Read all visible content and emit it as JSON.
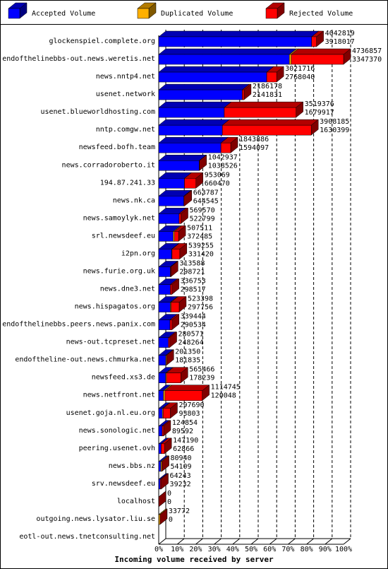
{
  "chart_data": {
    "type": "bar3d-stacked-horizontal",
    "xlabel": "Incoming volume received by server",
    "categories": [
      "glockenspiel.complete.org",
      "endofthelinebbs-out.news.weretis.net",
      "news.nntp4.net",
      "usenet.network",
      "usenet.blueworldhosting.com",
      "nntp.comgw.net",
      "newsfeed.bofh.team",
      "news.corradoroberto.it",
      "194.87.241.33",
      "news.nk.ca",
      "news.samoylyk.net",
      "srl.newsdeef.eu",
      "i2pn.org",
      "news.furie.org.uk",
      "news.dne3.net",
      "news.hispagatos.org",
      "endofthelinebbs.peers.news.panix.com",
      "news-out.tcpreset.net",
      "endoftheline-out.news.chmurka.net",
      "newsfeed.xs3.de",
      "news.netfront.net",
      "usenet.goja.nl.eu.org",
      "news.sonologic.net",
      "peering.usenet.ovh",
      "news.bbs.nz",
      "srv.newsdeef.eu",
      "localhost",
      "outgoing.news.lysator.liu.se",
      "eotl-out.news.tnetconsulting.net"
    ],
    "totals": [
      4042819,
      4736857,
      3021716,
      2186178,
      3519376,
      3908185,
      1843886,
      1042937,
      953069,
      663787,
      569570,
      507511,
      539255,
      313588,
      336753,
      523398,
      339444,
      280571,
      201350,
      565466,
      1114745,
      297690,
      124854,
      147190,
      80940,
      64243,
      0,
      33772,
      null
    ],
    "series": [
      {
        "name": "Accepted Volume",
        "color": "#0000ff",
        "values": [
          3918017,
          3347370,
          2768040,
          2141831,
          1679917,
          1630399,
          1594097,
          1038526,
          660470,
          644545,
          522799,
          372485,
          331420,
          298721,
          298517,
          297756,
          290534,
          248264,
          181835,
          178239,
          120048,
          93803,
          89592,
          62866,
          54109,
          39232,
          0,
          0,
          null
        ]
      },
      {
        "name": "Duplicated Volume",
        "color": "#ffb000",
        "values": [
          0,
          50000,
          0,
          0,
          0,
          0,
          0,
          0,
          0,
          0,
          0,
          30000,
          10000,
          0,
          0,
          20000,
          0,
          0,
          19515,
          20000,
          40000,
          20000,
          0,
          0,
          26831,
          0,
          0,
          33772,
          null
        ]
      },
      {
        "name": "Rejected Volume",
        "color": "#ff0000",
        "values": [
          124802,
          1339487,
          253676,
          44347,
          1839459,
          2277786,
          249789,
          4411,
          292599,
          19242,
          46771,
          105026,
          197835,
          14867,
          38236,
          205642,
          48910,
          32307,
          0,
          367227,
          954697,
          183887,
          35262,
          84324,
          0,
          25011,
          0,
          0,
          null
        ]
      }
    ],
    "xlim": [
      0,
      4736857
    ],
    "xticks": [
      {
        "value": 0,
        "label": "0%"
      },
      {
        "value": 473685.7,
        "label": "10%"
      },
      {
        "value": 947371.4,
        "label": "20%"
      },
      {
        "value": 1421057.1,
        "label": "30%"
      },
      {
        "value": 1894742.8,
        "label": "40%"
      },
      {
        "value": 2368428.5,
        "label": "50%"
      },
      {
        "value": 2842114.2,
        "label": "60%"
      },
      {
        "value": 3315799.9,
        "label": "70%"
      },
      {
        "value": 3789485.6,
        "label": "80%"
      },
      {
        "value": 4263171.3,
        "label": "90%"
      },
      {
        "value": 4736857,
        "label": "100%"
      }
    ],
    "grid": true
  }
}
